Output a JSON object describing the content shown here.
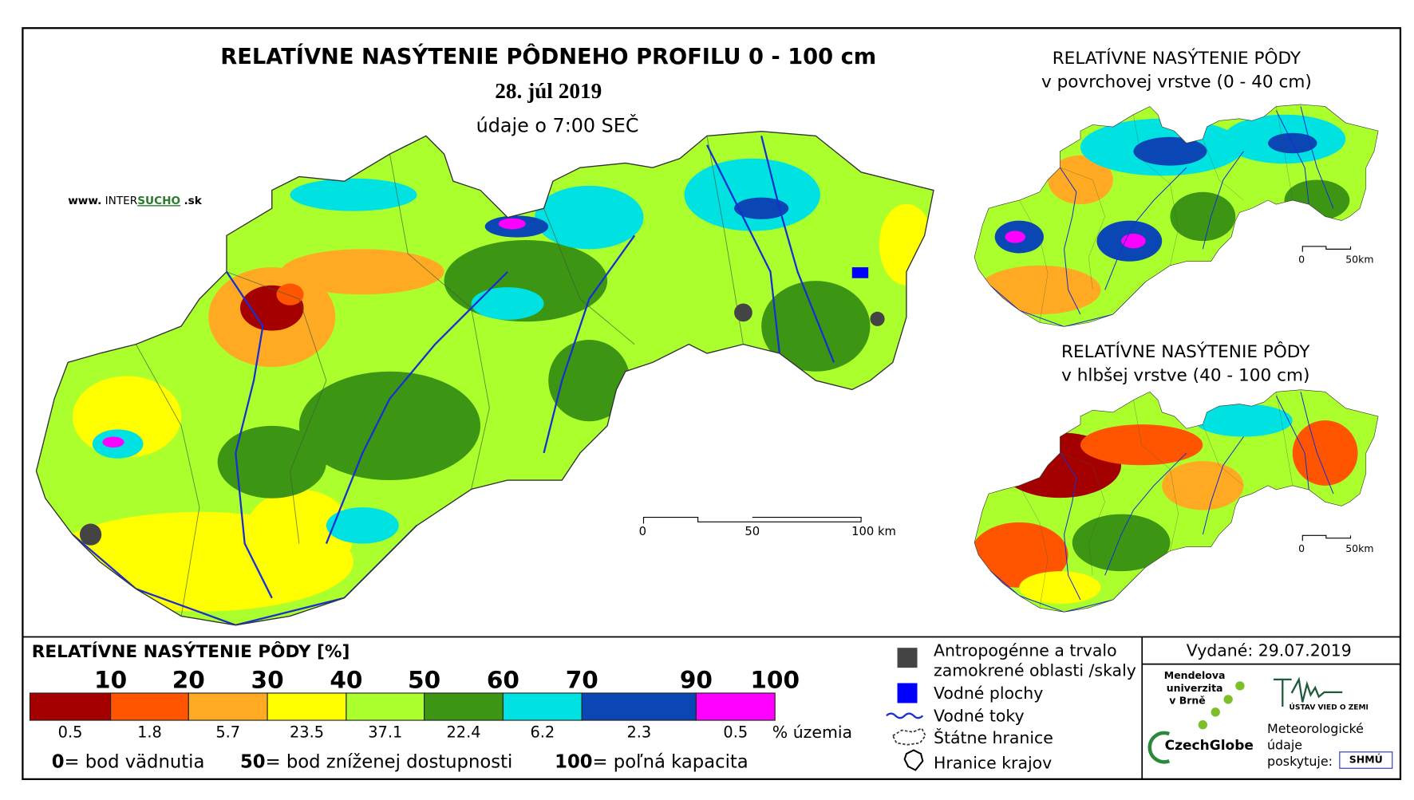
{
  "main_map": {
    "title": "RELATÍVNE NASÝTENIE PÔDNEHO PROFILU 0 - 100 cm",
    "date": "28. júl 2019",
    "time_note": "údaje o 7:00 SEČ",
    "website": [
      "www.",
      "INTER",
      "SUCHO",
      ".sk"
    ],
    "scale_labels": [
      "0",
      "50",
      "100 km"
    ]
  },
  "inset_top": {
    "title": "RELATÍVNE NASÝTENIE PÔDY",
    "subtitle": "v povrchovej vrstve (0 - 40 cm)",
    "scale_labels": [
      "0",
      "50km"
    ]
  },
  "inset_bottom": {
    "title": "RELATÍVNE NASÝTENIE PÔDY",
    "subtitle": "v hlbšej vrstve (40 - 100 cm)",
    "scale_labels": [
      "0",
      "50km"
    ]
  },
  "legend": {
    "title": "RELATÍVNE NASÝTENIE PÔDY [%]",
    "boundaries": [
      10,
      20,
      30,
      40,
      50,
      60,
      70,
      90,
      100
    ],
    "classes": [
      {
        "color": "#a50000",
        "share": 0.5
      },
      {
        "color": "#ff5500",
        "share": 1.8
      },
      {
        "color": "#ffaa22",
        "share": 5.7
      },
      {
        "color": "#ffff00",
        "share": 23.5
      },
      {
        "color": "#aaff2d",
        "share": 37.1
      },
      {
        "color": "#3c9614",
        "share": 22.4
      },
      {
        "color": "#00e1e1",
        "share": 6.2
      },
      {
        "color": "#0a46b4",
        "share": 2.3
      },
      {
        "color": "#ff00ff",
        "share": 0.5
      }
    ],
    "share_unit": "% územia",
    "notes": [
      {
        "key": "0",
        "text": "= bod vädnutia"
      },
      {
        "key": "50",
        "text": "= bod zníženej dostupnosti"
      },
      {
        "key": "100",
        "text": "= poľná kapacita"
      }
    ]
  },
  "symbols": {
    "anthropogenic": [
      "Antropogénne a trvalo",
      "zamokrené oblasti /skaly"
    ],
    "water_bodies": "Vodné plochy",
    "rivers": "Vodné toky",
    "state_border": "Štátne hranice",
    "region_border": "Hranice krajov"
  },
  "issued": "Vydané: 29.07.2019",
  "logos": {
    "mendel": [
      "Mendelova",
      "univerzita",
      "v Brně"
    ],
    "czechglobe": "CzechGlobe",
    "uvz": "ÚSTAV VIED O ZEMI",
    "provider": [
      "Meteorologické",
      "údaje",
      "poskytuje:"
    ],
    "shmu": "SHMÚ"
  }
}
